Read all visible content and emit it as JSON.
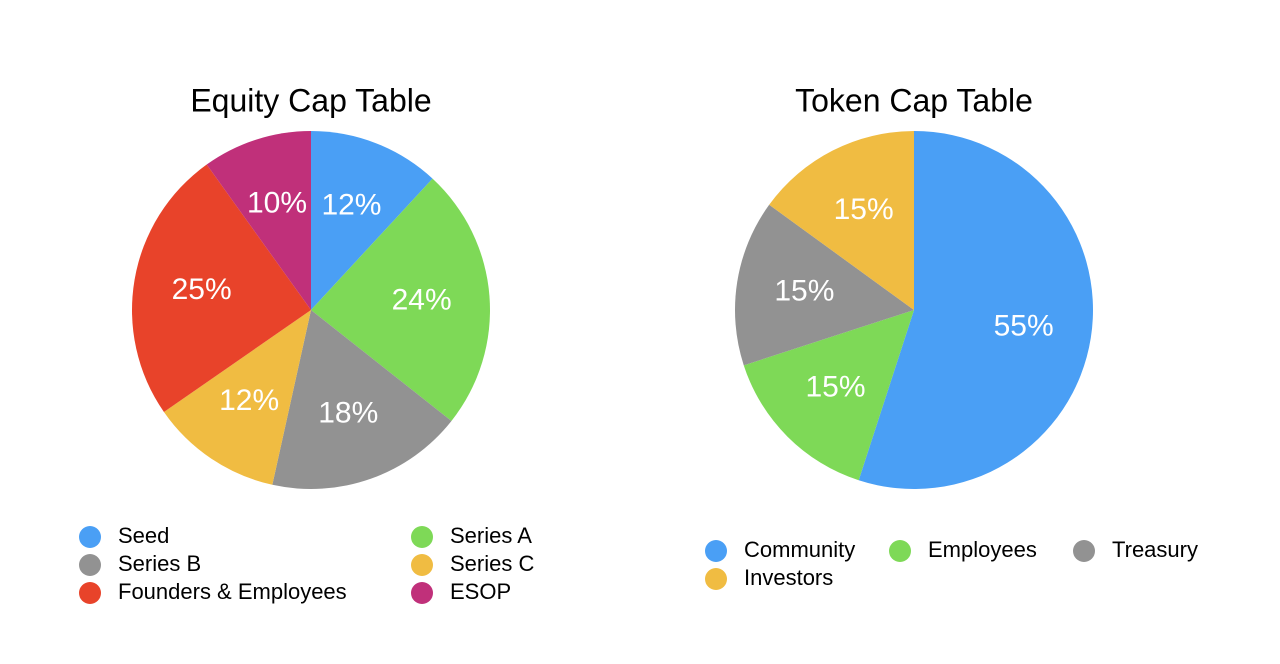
{
  "chart_data": [
    {
      "type": "pie",
      "title": "Equity Cap Table",
      "categories": [
        "Seed",
        "Series A",
        "Series B",
        "Series C",
        "Founders & Employees",
        "ESOP"
      ],
      "values": [
        12,
        24,
        18,
        12,
        25,
        10
      ],
      "value_labels": [
        "12%",
        "24%",
        "18%",
        "12%",
        "25%",
        "10%"
      ],
      "colors": [
        "#4a9ff5",
        "#7ed957",
        "#929292",
        "#f0bc42",
        "#e8432a",
        "#c0307a"
      ]
    },
    {
      "type": "pie",
      "title": "Token Cap Table",
      "categories": [
        "Community",
        "Employees",
        "Treasury",
        "Investors"
      ],
      "values": [
        55,
        15,
        15,
        15
      ],
      "value_labels": [
        "55%",
        "15%",
        "15%",
        "15%"
      ],
      "colors": [
        "#4a9ff5",
        "#7ed957",
        "#929292",
        "#f0bc42"
      ]
    }
  ]
}
